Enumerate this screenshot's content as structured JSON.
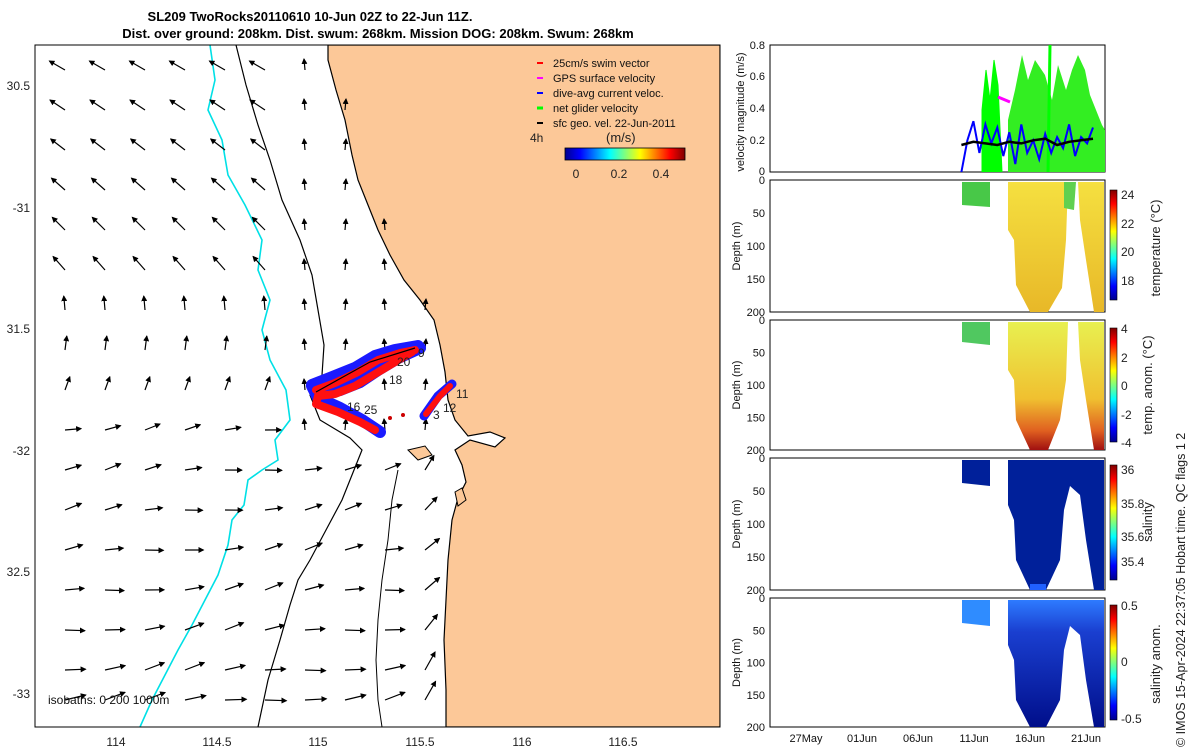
{
  "chart_data": [
    {
      "type": "map",
      "title_line1": "SL209 TwoRocks20110610 10-Jun 02Z to 22-Jun 11Z.",
      "title_line2": "Dist. over ground: 208km. Dist. swum: 268km. Mission DOG: 208km. Swum: 268km",
      "x_ticks": [
        114,
        114.5,
        115,
        115.5,
        116,
        116.5
      ],
      "x_tick_labels": [
        "114",
        "114.5",
        "115",
        "115.5",
        "116",
        "116.5"
      ],
      "xlim": [
        113.6,
        117.0
      ],
      "y_ticks": [
        -30.5,
        -31,
        -31.5,
        -32,
        -32.5,
        -33
      ],
      "y_tick_labels": [
        "30.5",
        "-31",
        "31.5",
        "-32",
        "32.5",
        "-33"
      ],
      "ylim": [
        -33.2,
        -30.35
      ],
      "isobaths_label": "isobaths: 0   200  1000m",
      "legend": [
        {
          "label": "25cm/s swim vector",
          "color": "#ff0000"
        },
        {
          "label": "GPS surface velocity",
          "color": "#ff00ff"
        },
        {
          "label": "dive-avg current veloc.",
          "color": "#0000ff"
        },
        {
          "label": "net glider velocity",
          "color": "#00ff00"
        },
        {
          "label": "sfc geo. vel. 22-Jun-2011",
          "color": "#000000"
        }
      ],
      "colorbar_unit": "(m/s)",
      "colorbar_prefix": "4h",
      "colorbar_tick_labels": [
        "0",
        "0.2",
        "0.4"
      ],
      "colorbar_range": [
        0,
        0.5
      ],
      "day_labels": [
        "9",
        "20",
        "18",
        "16",
        "25",
        "11",
        "12",
        "3"
      ]
    },
    {
      "type": "line",
      "ylabel": "velocity magnitude (m/s)",
      "ylim": [
        0,
        0.8
      ],
      "y_tick_labels": [
        "0",
        "0.2",
        "0.4",
        "0.6",
        "0.8"
      ],
      "series": [
        {
          "name": "dive-avg current",
          "color": "#0000ff",
          "x": [
            11,
            11.5,
            12,
            12.5,
            13,
            13.5,
            14,
            14.5,
            15,
            15.5,
            16,
            16.5,
            17,
            17.5,
            18,
            18.5,
            19,
            19.5,
            20,
            20.5,
            21,
            21.5,
            22
          ],
          "y": [
            0.0,
            0.2,
            0.32,
            0.12,
            0.3,
            0.18,
            0.28,
            0.1,
            0.25,
            0.05,
            0.3,
            0.12,
            0.2,
            0.08,
            0.24,
            0.12,
            0.22,
            0.15,
            0.3,
            0.1,
            0.22,
            0.18,
            0.28
          ]
        },
        {
          "name": "sfc geo. vel.",
          "color": "#000000",
          "x": [
            11,
            12,
            13,
            14,
            15,
            16,
            17,
            18,
            19,
            20,
            21,
            22
          ],
          "y": [
            0.17,
            0.19,
            0.18,
            0.17,
            0.19,
            0.18,
            0.2,
            0.21,
            0.17,
            0.19,
            0.2,
            0.21
          ]
        }
      ]
    },
    {
      "type": "heatmap",
      "variable": "temperature",
      "ylabel": "Depth (m)",
      "clabel": "temperature (°C)",
      "c_tick_labels": [
        "24",
        "22",
        "20",
        "18"
      ],
      "crange": [
        16.5,
        24.5
      ]
    },
    {
      "type": "heatmap",
      "variable": "temp. anom.",
      "ylabel": "Depth (m)",
      "clabel": "temp. anom. (°C)",
      "c_tick_labels": [
        "4",
        "2",
        "0",
        "-2",
        "-4"
      ],
      "crange": [
        -4,
        4
      ]
    },
    {
      "type": "heatmap",
      "variable": "salinity",
      "ylabel": "Depth (m)",
      "clabel": "salinity",
      "c_tick_labels": [
        "36",
        "35.8",
        "35.6",
        "35.4"
      ],
      "crange": [
        35.25,
        36.05
      ]
    },
    {
      "type": "heatmap",
      "variable": "salinity anom.",
      "ylabel": "Depth (m)",
      "clabel": "salinity anom.",
      "c_tick_labels": [
        "0.5",
        "0",
        "-0.5"
      ],
      "crange": [
        -0.5,
        0.5
      ]
    }
  ],
  "depth_ticks": [
    "0",
    "50",
    "100",
    "150",
    "200"
  ],
  "date_ticks": [
    "27May",
    "01Jun",
    "06Jun",
    "11Jun",
    "16Jun",
    "21Jun"
  ],
  "footer": "© IMOS 15-Apr-2024 22:37:05 Hobart time. QC flags 1  2"
}
